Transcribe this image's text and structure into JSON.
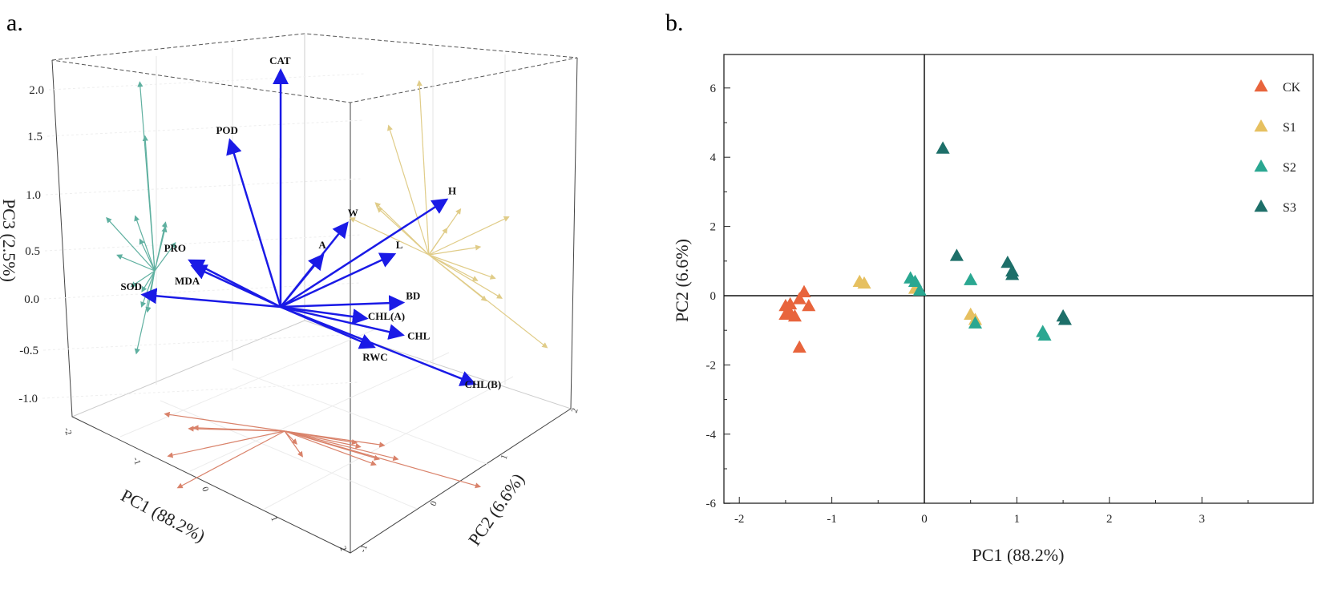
{
  "panels": {
    "a": "a.",
    "b": "b."
  },
  "colors": {
    "CK": "#e8643c",
    "S1": "#e6c060",
    "S2": "#2aa791",
    "S3": "#1d6f69",
    "loading": "#1a1ae6",
    "wall_teal": "#5fb0a0",
    "wall_yellow": "#e0cc88",
    "floor_red": "#d9826a"
  },
  "chart_data": [
    {
      "type": "biplot-3d",
      "title": "a.",
      "xlabel": "PC1 (88.2%)",
      "ylabel": "PC2 (6.6%)",
      "zlabel": "PC3 (2.5%)",
      "pc1_ticks": [
        "-2",
        "-1",
        "0",
        "1",
        "2"
      ],
      "pc2_ticks": [
        "-1",
        "0",
        "1",
        "2"
      ],
      "pc3_ticks": [
        "2.0",
        "1.5",
        "1.0",
        "0.5",
        "0.0",
        "-0.5",
        "-1.0"
      ],
      "loadings": [
        {
          "name": "CAT",
          "pc1": -0.23,
          "pc2": 0.2,
          "pc3": 2.1
        },
        {
          "name": "POD",
          "pc1": -0.71,
          "pc2": -0.03,
          "pc3": 1.4
        },
        {
          "name": "W",
          "pc1": 0.43,
          "pc2": 0.47,
          "pc3": 0.7
        },
        {
          "name": "A",
          "pc1": 0.23,
          "pc2": 0.33,
          "pc3": 0.4
        },
        {
          "name": "H",
          "pc1": 1.09,
          "pc2": 1.17,
          "pc3": 0.8
        },
        {
          "name": "L",
          "pc1": 0.67,
          "pc2": 0.86,
          "pc3": 0.3
        },
        {
          "name": "BD",
          "pc1": 0.98,
          "pc2": 0.7,
          "pc3": 0.0
        },
        {
          "name": "CHL(A)",
          "pc1": 0.74,
          "pc2": 0.44,
          "pc3": -0.1
        },
        {
          "name": "CHL",
          "pc1": 1.14,
          "pc2": 0.56,
          "pc3": -0.2
        },
        {
          "name": "RWC",
          "pc1": 0.91,
          "pc2": 0.39,
          "pc3": -0.3
        },
        {
          "name": "CHL(B)",
          "pc1": 1.86,
          "pc2": 0.86,
          "pc3": -0.6
        },
        {
          "name": "PRO",
          "pc1": -0.83,
          "pc2": -0.43,
          "pc3": 0.4
        },
        {
          "name": "MDA",
          "pc1": -0.8,
          "pc2": -0.42,
          "pc3": 0.35
        },
        {
          "name": "SOD",
          "pc1": -1.2,
          "pc2": -0.71,
          "pc3": 0.1
        }
      ]
    },
    {
      "type": "scatter",
      "title": "b.",
      "xlabel": "PC1 (88.2%)",
      "ylabel": "PC2 (6.6%)",
      "xlim": [
        -2.17,
        4.2
      ],
      "ylim": [
        -6,
        7
      ],
      "xticks": [
        -2,
        -1,
        0,
        1,
        2,
        3
      ],
      "yticks": [
        -6,
        -4,
        -2,
        0,
        2,
        4,
        6
      ],
      "legend_position": "top-right",
      "series": [
        {
          "name": "CK",
          "points": [
            [
              -1.3,
              0.1
            ],
            [
              -1.5,
              -0.3
            ],
            [
              -1.45,
              -0.25
            ],
            [
              -1.25,
              -0.3
            ],
            [
              -1.35,
              -0.1
            ],
            [
              -1.5,
              -0.55
            ],
            [
              -1.4,
              -0.6
            ],
            [
              -1.35,
              -1.5
            ],
            [
              -1.45,
              -0.5
            ]
          ]
        },
        {
          "name": "S1",
          "points": [
            [
              -0.7,
              0.4
            ],
            [
              -0.65,
              0.35
            ],
            [
              -0.1,
              0.2
            ],
            [
              0.5,
              -0.55
            ],
            [
              0.55,
              -0.7
            ]
          ]
        },
        {
          "name": "S2",
          "points": [
            [
              -0.15,
              0.5
            ],
            [
              -0.1,
              0.4
            ],
            [
              -0.05,
              0.15
            ],
            [
              0.5,
              0.45
            ],
            [
              0.55,
              -0.8
            ],
            [
              1.28,
              -1.05
            ],
            [
              1.3,
              -1.15
            ]
          ]
        },
        {
          "name": "S3",
          "points": [
            [
              0.2,
              4.25
            ],
            [
              0.35,
              1.15
            ],
            [
              0.9,
              0.95
            ],
            [
              0.95,
              0.7
            ],
            [
              0.95,
              0.6
            ],
            [
              1.5,
              -0.6
            ],
            [
              1.52,
              -0.7
            ]
          ]
        }
      ]
    }
  ]
}
